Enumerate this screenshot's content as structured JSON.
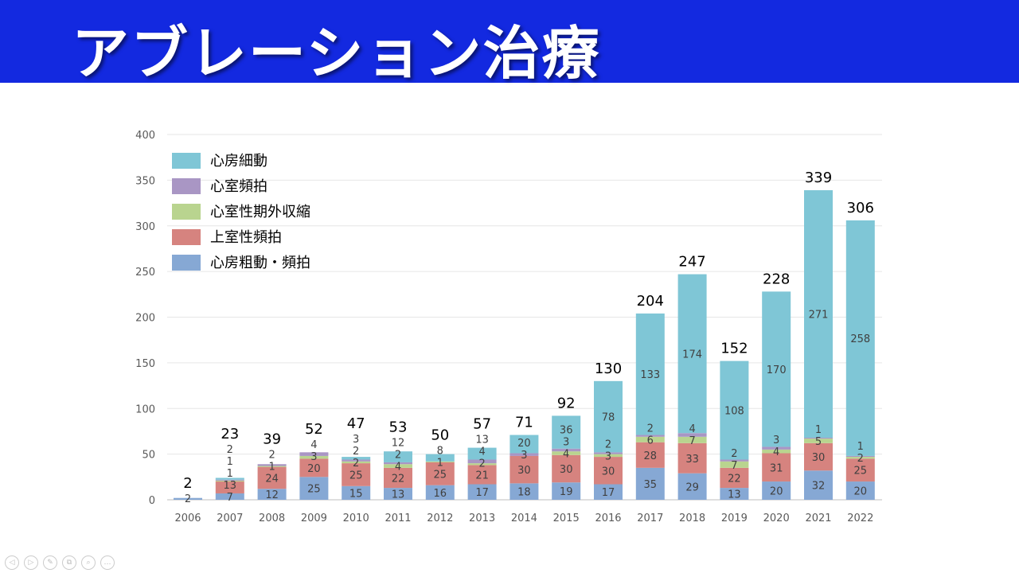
{
  "slide_title": "アブレーション治療",
  "chart_data": {
    "type": "bar",
    "stacked": true,
    "categories": [
      "2006",
      "2007",
      "2008",
      "2009",
      "2010",
      "2011",
      "2012",
      "2013",
      "2014",
      "2015",
      "2016",
      "2017",
      "2018",
      "2019",
      "2020",
      "2021",
      "2022"
    ],
    "series": [
      {
        "name": "心房粗動・頻拍",
        "color": "#86a8d4",
        "values": [
          2,
          7,
          12,
          25,
          15,
          13,
          16,
          17,
          18,
          19,
          17,
          35,
          29,
          13,
          20,
          32,
          20
        ]
      },
      {
        "name": "上室性頻拍",
        "color": "#d6837f",
        "values": [
          0,
          13,
          24,
          20,
          25,
          22,
          25,
          21,
          30,
          30,
          30,
          28,
          33,
          22,
          31,
          30,
          25
        ]
      },
      {
        "name": "心室性期外収縮",
        "color": "#b9d48f",
        "values": [
          0,
          1,
          1,
          3,
          2,
          4,
          1,
          2,
          0,
          4,
          3,
          6,
          7,
          7,
          4,
          5,
          2
        ]
      },
      {
        "name": "心室頻拍",
        "color": "#a996c4",
        "values": [
          0,
          1,
          2,
          4,
          2,
          2,
          0,
          4,
          3,
          3,
          2,
          2,
          4,
          2,
          3,
          1,
          1
        ]
      },
      {
        "name": "心房細動",
        "color": "#7fc6d6",
        "values": [
          0,
          2,
          0,
          0,
          3,
          12,
          8,
          13,
          20,
          36,
          78,
          133,
          174,
          108,
          170,
          271,
          258
        ]
      }
    ],
    "totals": [
      2,
      23,
      39,
      52,
      47,
      53,
      50,
      57,
      71,
      92,
      130,
      204,
      247,
      152,
      228,
      339,
      306
    ],
    "ylim": [
      0,
      400
    ],
    "yticks": [
      0,
      50,
      100,
      150,
      200,
      250,
      300,
      350,
      400
    ],
    "grid": true,
    "legend_placement": "top-left"
  },
  "controls": [
    "◁",
    "▷",
    "✎",
    "⧉",
    "⌕",
    "…"
  ]
}
